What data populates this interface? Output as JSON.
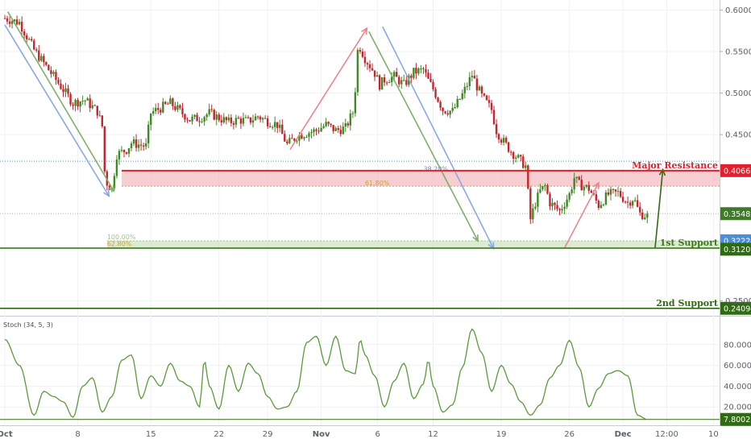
{
  "chart_data": {
    "type": "candlestick",
    "price_axis": {
      "ticks": [
        "0.60000",
        "0.55000",
        "0.50000",
        "0.45000",
        "0.25000"
      ],
      "ylim": [
        0.232,
        0.612
      ]
    },
    "x_axis": {
      "ticks": [
        "Oct",
        "8",
        "15",
        "22",
        "29",
        "Nov",
        "6",
        "12",
        "19",
        "26",
        "Dec",
        "12:00",
        "10"
      ]
    },
    "levels": [
      {
        "name": "Major Resistance",
        "value": "0.40665",
        "price": 0.40665,
        "color": "#e0202c"
      },
      {
        "name": "1st Support",
        "value": "0.31340",
        "price": 0.3134,
        "color": "#3c7a1c"
      },
      {
        "name": "2nd Support",
        "value": "0.24094",
        "price": 0.24094,
        "color": "#2f6b12"
      }
    ],
    "price_badges": [
      {
        "value": "0.35486",
        "price": 0.35486,
        "color": "#3f7a28"
      },
      {
        "value": "0.32224",
        "price": 0.32224,
        "color": "#4d8fd6"
      },
      {
        "value": "0.31208",
        "price": 0.31208,
        "color": "#2f6b12"
      }
    ],
    "fib_labels": [
      {
        "text": "38.20%",
        "price": 0.404,
        "color": "#8a79d6"
      },
      {
        "text": "61.80%",
        "price": 0.387,
        "color": "#c9a040"
      },
      {
        "text": "100.00%",
        "price": 0.3222,
        "color": "#a0c48a"
      },
      {
        "text": "62.80%",
        "price": 0.3138,
        "color": "#c9a040"
      }
    ],
    "close_path": [
      [
        0,
        0.59
      ],
      [
        1.5,
        0.585
      ],
      [
        3,
        0.552
      ],
      [
        5,
        0.52
      ],
      [
        7,
        0.488
      ],
      [
        8.2,
        0.492
      ],
      [
        9.5,
        0.478
      ],
      [
        10,
        0.46
      ],
      [
        10.3,
        0.395
      ],
      [
        11,
        0.384
      ],
      [
        11.5,
        0.426
      ],
      [
        12.5,
        0.432
      ],
      [
        13,
        0.44
      ],
      [
        14.5,
        0.436
      ],
      [
        15,
        0.476
      ],
      [
        16,
        0.482
      ],
      [
        17,
        0.488
      ],
      [
        18,
        0.478
      ],
      [
        19,
        0.468
      ],
      [
        20,
        0.47
      ],
      [
        21,
        0.476
      ],
      [
        22,
        0.47
      ],
      [
        23,
        0.465
      ],
      [
        24,
        0.468
      ],
      [
        25,
        0.466
      ],
      [
        26,
        0.472
      ],
      [
        27,
        0.466
      ],
      [
        28,
        0.462
      ],
      [
        29,
        0.438
      ],
      [
        30,
        0.448
      ],
      [
        31,
        0.452
      ],
      [
        32,
        0.455
      ],
      [
        33,
        0.462
      ],
      [
        34,
        0.455
      ],
      [
        35,
        0.458
      ],
      [
        35.8,
        0.478
      ],
      [
        36,
        0.505
      ],
      [
        36.3,
        0.56
      ],
      [
        37,
        0.542
      ],
      [
        38,
        0.524
      ],
      [
        38.5,
        0.51
      ],
      [
        39,
        0.516
      ],
      [
        40,
        0.52
      ],
      [
        41,
        0.51
      ],
      [
        42,
        0.525
      ],
      [
        43,
        0.528
      ],
      [
        43.5,
        0.515
      ],
      [
        44,
        0.505
      ],
      [
        45,
        0.48
      ],
      [
        46,
        0.478
      ],
      [
        47,
        0.498
      ],
      [
        48,
        0.522
      ],
      [
        48.5,
        0.508
      ],
      [
        49,
        0.496
      ],
      [
        50,
        0.48
      ],
      [
        50.5,
        0.455
      ],
      [
        51,
        0.445
      ],
      [
        52,
        0.43
      ],
      [
        53,
        0.418
      ],
      [
        53.5,
        0.412
      ],
      [
        54,
        0.348
      ],
      [
        54.5,
        0.368
      ],
      [
        55,
        0.382
      ],
      [
        55.5,
        0.388
      ],
      [
        56,
        0.368
      ],
      [
        57,
        0.358
      ],
      [
        58,
        0.378
      ],
      [
        58.5,
        0.398
      ],
      [
        59,
        0.39
      ],
      [
        60,
        0.385
      ],
      [
        61,
        0.365
      ],
      [
        62,
        0.378
      ],
      [
        63,
        0.38
      ],
      [
        64,
        0.368
      ],
      [
        64.6,
        0.374
      ],
      [
        65.2,
        0.355
      ],
      [
        66,
        0.352
      ]
    ],
    "stoch": {
      "title": "Stoch (34, 5, 3)",
      "ticks": [
        "80.0000",
        "60.0000",
        "40.0000",
        "20.0000"
      ],
      "ylim": [
        7,
        100
      ],
      "last_value": "7.8002",
      "values": [
        [
          0,
          85
        ],
        [
          1.5,
          60
        ],
        [
          3,
          12
        ],
        [
          4,
          35
        ],
        [
          5,
          30
        ],
        [
          6,
          25
        ],
        [
          7,
          10
        ],
        [
          8,
          40
        ],
        [
          9,
          48
        ],
        [
          10,
          15
        ],
        [
          11,
          30
        ],
        [
          12,
          65
        ],
        [
          13,
          70
        ],
        [
          14,
          28
        ],
        [
          15,
          50
        ],
        [
          16,
          40
        ],
        [
          17,
          62
        ],
        [
          18,
          45
        ],
        [
          19,
          40
        ],
        [
          20,
          20
        ],
        [
          20.5,
          65
        ],
        [
          21,
          40
        ],
        [
          22,
          18
        ],
        [
          23,
          60
        ],
        [
          24,
          35
        ],
        [
          25,
          62
        ],
        [
          26,
          52
        ],
        [
          27,
          30
        ],
        [
          28,
          18
        ],
        [
          29,
          20
        ],
        [
          30,
          35
        ],
        [
          31,
          82
        ],
        [
          32,
          88
        ],
        [
          33,
          60
        ],
        [
          34,
          88
        ],
        [
          35,
          55
        ],
        [
          36,
          52
        ],
        [
          36.5,
          85
        ],
        [
          37,
          70
        ],
        [
          38,
          50
        ],
        [
          39,
          20
        ],
        [
          40,
          45
        ],
        [
          41,
          62
        ],
        [
          42,
          28
        ],
        [
          43,
          42
        ],
        [
          43.5,
          65
        ],
        [
          44,
          40
        ],
        [
          45,
          15
        ],
        [
          46,
          22
        ],
        [
          47,
          58
        ],
        [
          48,
          95
        ],
        [
          49,
          72
        ],
        [
          50,
          35
        ],
        [
          51,
          60
        ],
        [
          52,
          42
        ],
        [
          53,
          25
        ],
        [
          54,
          12
        ],
        [
          55,
          22
        ],
        [
          56,
          48
        ],
        [
          57,
          60
        ],
        [
          58,
          84
        ],
        [
          59,
          58
        ],
        [
          60,
          20
        ],
        [
          61,
          38
        ],
        [
          62,
          52
        ],
        [
          63,
          55
        ],
        [
          64,
          50
        ],
        [
          65,
          12
        ],
        [
          66,
          8
        ]
      ]
    }
  }
}
